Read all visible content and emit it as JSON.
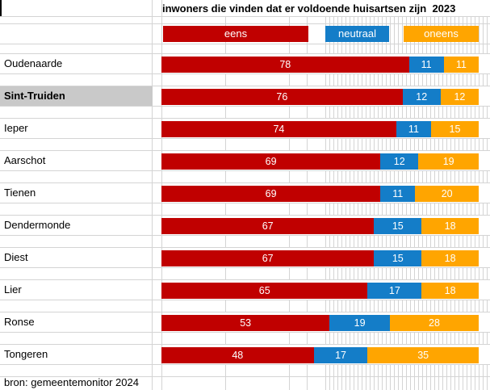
{
  "title": "inwoners die vinden dat er voldoende huisartsen zijn  2023",
  "source": "bron: gemeentemonitor 2024",
  "legend": [
    {
      "label": "eens",
      "color": "#C00000"
    },
    {
      "label": "neutraal",
      "color": "#147DC8"
    },
    {
      "label": "oneens",
      "color": "#FFA500"
    }
  ],
  "colors": {
    "eens": "#C00000",
    "neutraal": "#147DC8",
    "oneens": "#FFA500",
    "highlight_cell": "#C9C9C9",
    "gridline": "#D4D4D4",
    "bar_text": "#FFFFFF"
  },
  "chart_data": {
    "type": "bar",
    "orientation": "horizontal",
    "stacked": true,
    "unit": "percent",
    "title": "inwoners die vinden dat er voldoende huisartsen zijn  2023",
    "categories": [
      "Oudenaarde",
      "Sint-Truiden",
      "Ieper",
      "Aarschot",
      "Tienen",
      "Dendermonde",
      "Diest",
      "Lier",
      "Ronse",
      "Tongeren"
    ],
    "highlighted_category": "Sint-Truiden",
    "series": [
      {
        "name": "eens",
        "color": "#C00000",
        "values": [
          78,
          76,
          74,
          69,
          69,
          67,
          67,
          65,
          53,
          48
        ]
      },
      {
        "name": "neutraal",
        "color": "#147DC8",
        "values": [
          11,
          12,
          11,
          12,
          11,
          15,
          15,
          17,
          19,
          17
        ]
      },
      {
        "name": "oneens",
        "color": "#FFA500",
        "values": [
          11,
          12,
          15,
          19,
          20,
          18,
          18,
          18,
          28,
          35
        ]
      }
    ],
    "xlim": [
      0,
      100
    ],
    "data_labels": true,
    "legend_position": "top",
    "source": "bron: gemeentemonitor 2024"
  }
}
